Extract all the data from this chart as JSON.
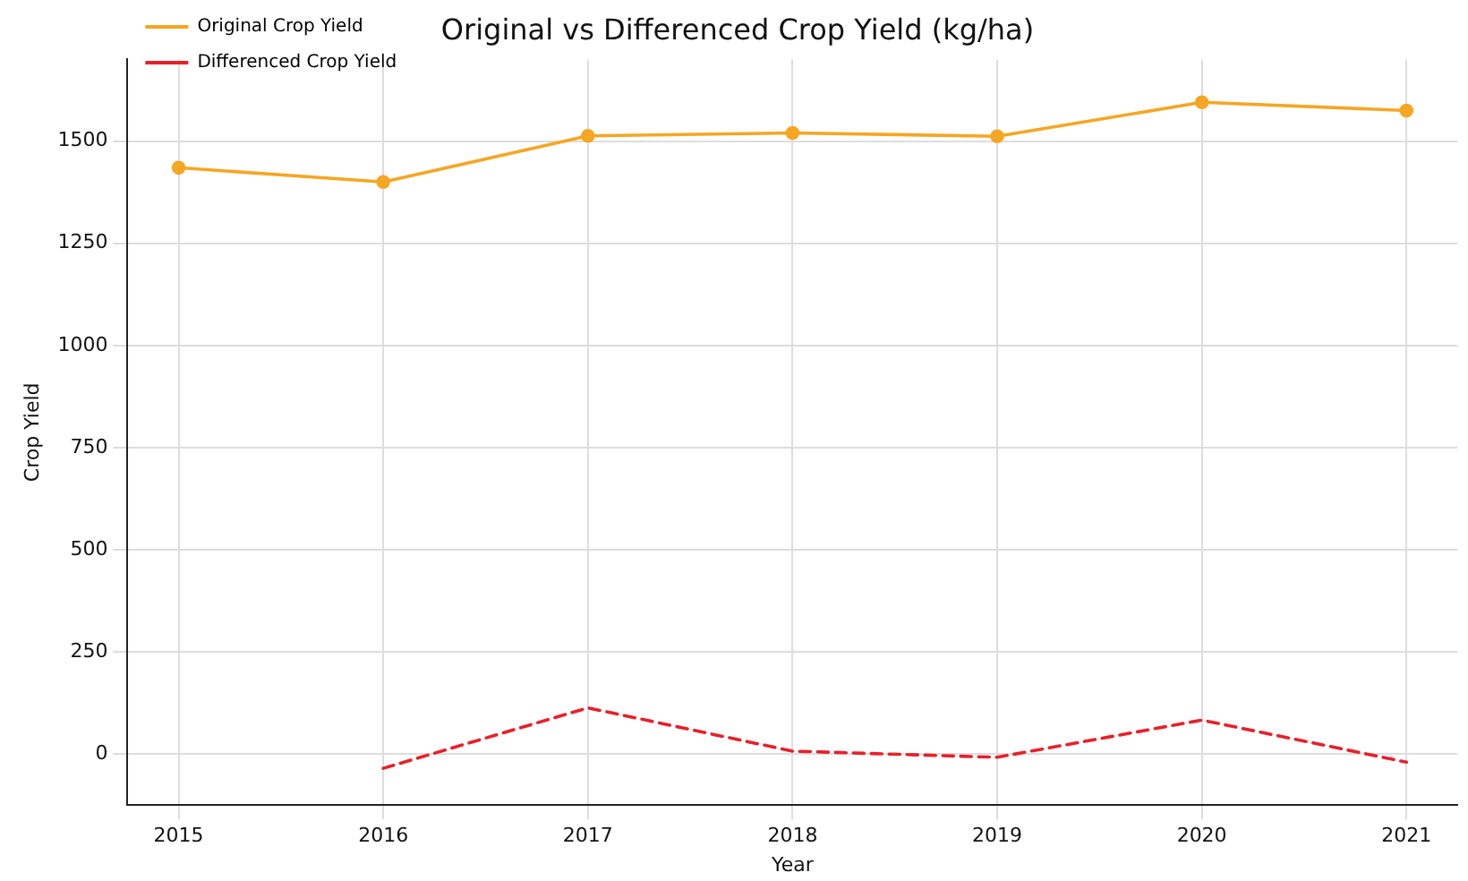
{
  "chart_data": {
    "type": "line",
    "title": "Original vs Differenced Crop Yield (kg/ha)",
    "xlabel": "Year",
    "ylabel": "Crop Yield",
    "x": [
      2015,
      2016,
      2017,
      2018,
      2019,
      2020,
      2021
    ],
    "series": [
      {
        "name": "Original Crop Yield",
        "color": "#f5a623",
        "marker": "circle",
        "line_style": "solid",
        "values": [
          1435,
          1400,
          1513,
          1520,
          1512,
          1595,
          1575
        ]
      },
      {
        "name": "Differenced Crop Yield",
        "color": "#e8202a",
        "marker": "none",
        "line_style": "dashed",
        "values": [
          null,
          -35,
          113,
          7,
          -8,
          83,
          -20
        ]
      }
    ],
    "xlim": [
      2014.75,
      2021.25
    ],
    "xticks": [
      2015,
      2016,
      2017,
      2018,
      2019,
      2020,
      2021
    ],
    "ylim": [
      -125,
      1700
    ],
    "yticks": [
      0,
      250,
      500,
      750,
      1000,
      1250,
      1500
    ],
    "grid": true,
    "legend": "top left"
  }
}
